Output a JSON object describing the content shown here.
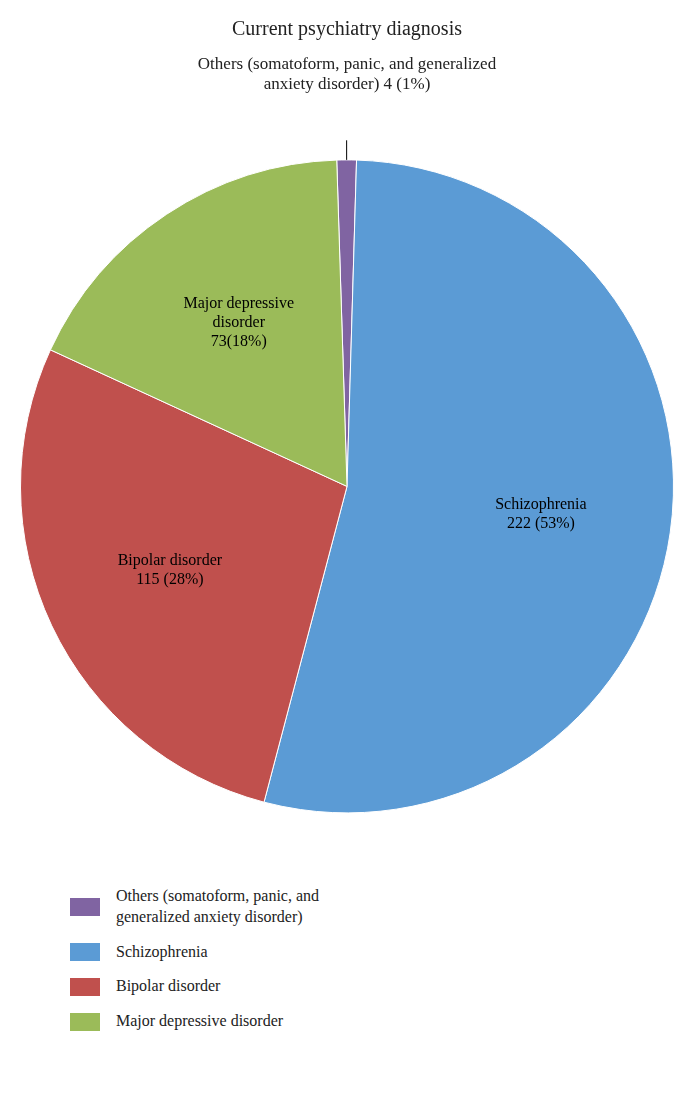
{
  "chart_data": {
    "type": "pie",
    "title": "Current psychiatry diagnosis",
    "annotation": "Others (somatoform, panic, and generalized\nanxiety disorder) 4 (1%)",
    "categories": [
      "Others (somatoform, panic, and\ngeneralized anxiety disorder)",
      "Schizophrenia",
      "Bipolar disorder",
      "Major depressive disorder"
    ],
    "values": [
      4,
      222,
      115,
      73
    ],
    "value_labels": [
      null,
      "Schizophrenia\n222 (53%)",
      "Bipolar disorder\n115 (28%)",
      "Major depressive\ndisorder\n73(18%)"
    ],
    "colors": [
      "#8064a2",
      "#5b9bd5",
      "#c0504d",
      "#9bbb59"
    ],
    "legend": "bottom",
    "data_labels": true
  }
}
